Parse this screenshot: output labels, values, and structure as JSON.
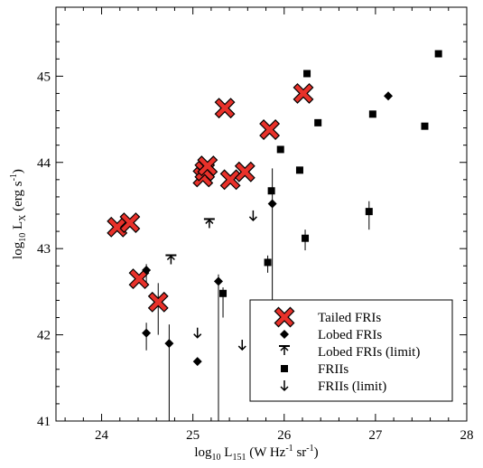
{
  "chart_data": {
    "type": "scatter",
    "title": "",
    "xlabel": {
      "pre": "log",
      "pre_sub": "10",
      "main": " L",
      "main_sub": "151",
      "unit_a": " (W Hz",
      "sup1": "-1",
      "unit_b": " sr",
      "sup2": "-1",
      "unit_c": ")"
    },
    "ylabel": {
      "pre": "log",
      "pre_sub": "10",
      "main": " L",
      "main_sub": "X",
      "unit_a": " (erg s",
      "sup1": "-1",
      "unit_c": ")"
    },
    "xlim": [
      23.5,
      28.0
    ],
    "ylim": [
      41.0,
      45.8
    ],
    "x_ticks": [
      24,
      25,
      26,
      27,
      28
    ],
    "y_ticks": [
      41,
      42,
      43,
      44,
      45
    ],
    "x_minor_step": 0.2,
    "y_minor_step": 0.2,
    "legend_position": "bottom-right",
    "series": [
      {
        "name": "Tailed FRIs",
        "marker": "cross",
        "color": "#e8312a",
        "points": [
          {
            "x": 24.17,
            "y": 43.25
          },
          {
            "x": 24.31,
            "y": 43.3
          },
          {
            "x": 24.41,
            "y": 42.65
          },
          {
            "x": 24.62,
            "y": 42.38,
            "err_lo": 42.0,
            "err_hi": 42.6
          },
          {
            "x": 25.11,
            "y": 43.83
          },
          {
            "x": 25.13,
            "y": 43.9
          },
          {
            "x": 25.16,
            "y": 43.96
          },
          {
            "x": 25.35,
            "y": 44.63
          },
          {
            "x": 25.41,
            "y": 43.8
          },
          {
            "x": 25.57,
            "y": 43.89
          },
          {
            "x": 25.84,
            "y": 44.38
          },
          {
            "x": 26.21,
            "y": 44.8
          }
        ]
      },
      {
        "name": "Lobed FRIs",
        "marker": "diamond",
        "color": "#000000",
        "points": [
          {
            "x": 24.49,
            "y": 42.75,
            "err_lo": 42.6,
            "err_hi": 42.82
          },
          {
            "x": 24.49,
            "y": 42.02,
            "err_lo": 41.82,
            "err_hi": 42.14
          },
          {
            "x": 24.74,
            "y": 41.9,
            "err_lo": 41.0,
            "err_hi": 42.12
          },
          {
            "x": 25.05,
            "y": 41.69
          },
          {
            "x": 25.28,
            "y": 42.62,
            "err_lo": 41.0,
            "err_hi": 42.7
          },
          {
            "x": 25.87,
            "y": 43.52,
            "err_lo": 41.8,
            "err_hi": 43.93
          },
          {
            "x": 27.14,
            "y": 44.77
          }
        ]
      },
      {
        "name": "Lobed FRIs (limit)",
        "marker": "up-limit",
        "color": "#000000",
        "points": [
          {
            "x": 24.76,
            "y": 42.86
          },
          {
            "x": 25.18,
            "y": 43.28
          }
        ]
      },
      {
        "name": "FRIIs",
        "marker": "square",
        "color": "#000000",
        "points": [
          {
            "x": 25.33,
            "y": 42.48,
            "err_lo": 42.2,
            "err_hi": 42.55
          },
          {
            "x": 25.82,
            "y": 42.84,
            "err_lo": 42.72,
            "err_hi": 42.92
          },
          {
            "x": 25.86,
            "y": 43.67
          },
          {
            "x": 25.96,
            "y": 44.15
          },
          {
            "x": 26.17,
            "y": 43.91
          },
          {
            "x": 26.23,
            "y": 43.12,
            "err_lo": 42.98,
            "err_hi": 43.22
          },
          {
            "x": 26.25,
            "y": 45.03
          },
          {
            "x": 26.37,
            "y": 44.46
          },
          {
            "x": 26.93,
            "y": 43.43,
            "err_lo": 43.22,
            "err_hi": 43.55
          },
          {
            "x": 26.97,
            "y": 44.56
          },
          {
            "x": 27.54,
            "y": 44.42
          },
          {
            "x": 27.69,
            "y": 45.26
          }
        ]
      },
      {
        "name": "FRIIs (limit)",
        "marker": "down-limit",
        "color": "#000000",
        "points": [
          {
            "x": 25.05,
            "y": 42.02
          },
          {
            "x": 25.54,
            "y": 41.88
          },
          {
            "x": 25.66,
            "y": 43.38
          }
        ]
      }
    ]
  }
}
